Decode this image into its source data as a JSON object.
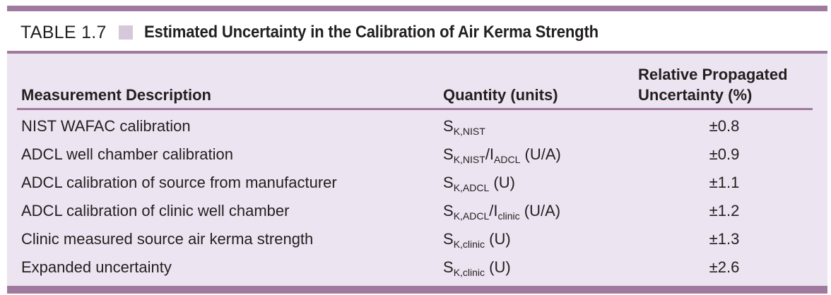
{
  "caption": {
    "number": "TABLE 1.7",
    "title": "Estimated Uncertainty in the Calibration of Air Kerma Strength"
  },
  "headers": {
    "description": "Measurement Description",
    "quantity": "Quantity (units)",
    "uncertainty_line1": "Relative Propagated",
    "uncertainty_line2": "Uncertainty (%)"
  },
  "rows": [
    {
      "description": "NIST WAFAC calibration",
      "q_main": "S",
      "q_sub": "K,NIST",
      "q_main2": "",
      "q_sub2": "",
      "q_units": "",
      "uncertainty": "±0.8"
    },
    {
      "description": "ADCL well chamber calibration",
      "q_main": "S",
      "q_sub": "K,NIST",
      "q_main2": "/I",
      "q_sub2": "ADCL",
      "q_units": " (U/A)",
      "uncertainty": "±0.9"
    },
    {
      "description": "ADCL calibration of source from manufacturer",
      "q_main": "S",
      "q_sub": "K,ADCL",
      "q_main2": "",
      "q_sub2": "",
      "q_units": " (U)",
      "uncertainty": "±1.1"
    },
    {
      "description": "ADCL calibration of clinic well chamber",
      "q_main": "S",
      "q_sub": "K,ADCL",
      "q_main2": "/I",
      "q_sub2": "clinic",
      "q_units": " (U/A)",
      "uncertainty": "±1.2"
    },
    {
      "description": "Clinic measured source air kerma strength",
      "q_main": "S",
      "q_sub": "K,clinic",
      "q_main2": "",
      "q_sub2": "",
      "q_units": " (U)",
      "uncertainty": "±1.3"
    },
    {
      "description": "Expanded uncertainty",
      "q_main": "S",
      "q_sub": "K,clinic",
      "q_main2": "",
      "q_sub2": "",
      "q_units": " (U)",
      "uncertainty": "±2.6"
    }
  ],
  "colors": {
    "rule": "#a07a9e",
    "body_background": "#ece4f0",
    "square": "#d6c8da",
    "text": "#231f20"
  }
}
